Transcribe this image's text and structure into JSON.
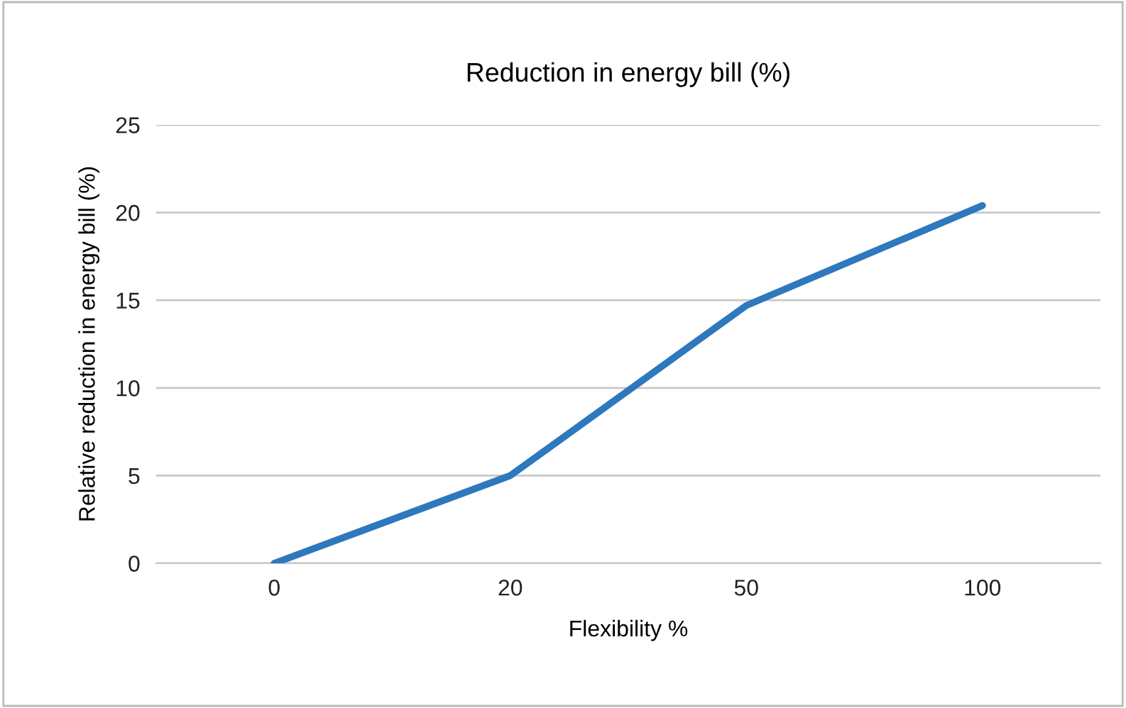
{
  "chart_data": {
    "type": "line",
    "title": "Reduction in energy bill (%)",
    "xlabel": "Flexibility %",
    "ylabel": "Relative reduction in energy bill (%)",
    "categories": [
      "0",
      "20",
      "50",
      "100"
    ],
    "series": [
      {
        "color": "#2e78bd",
        "values": [
          0,
          5,
          14.7,
          20.4
        ]
      }
    ],
    "ylim": [
      0,
      25
    ],
    "yticks": [
      0,
      5,
      10,
      15,
      20,
      25
    ],
    "grid": "y",
    "marker": "none",
    "line_style": "solid"
  }
}
